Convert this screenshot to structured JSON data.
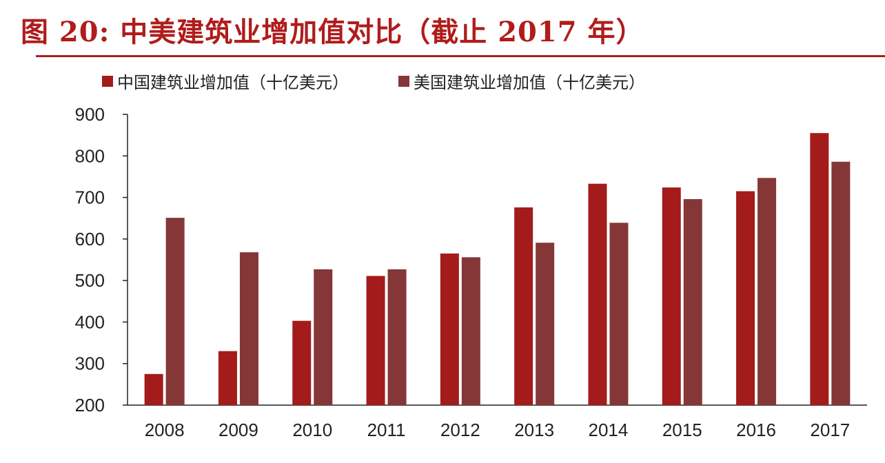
{
  "title": "图 20:  中美建筑业增加值对比（截止 2017 年）",
  "colors": {
    "title": "#b01c1c",
    "rule": "#a62020",
    "china": "#a31b1b",
    "usa": "#853737",
    "axis": "#222222"
  },
  "chart_data": {
    "type": "bar",
    "title": "图 20:  中美建筑业增加值对比（截止 2017 年）",
    "xlabel": "",
    "ylabel": "",
    "categories": [
      "2008",
      "2009",
      "2010",
      "2011",
      "2012",
      "2013",
      "2014",
      "2015",
      "2016",
      "2017"
    ],
    "series": [
      {
        "name": "中国建筑业增加值（十亿美元）",
        "color": "#a31b1b",
        "values": [
          275,
          330,
          403,
          511,
          565,
          676,
          733,
          724,
          715,
          855
        ]
      },
      {
        "name": "美国建筑业增加值（十亿美元）",
        "color": "#853737",
        "values": [
          651,
          568,
          527,
          527,
          556,
          591,
          639,
          696,
          747,
          786
        ]
      }
    ],
    "ylim": [
      200,
      900
    ],
    "yticks": [
      200,
      300,
      400,
      500,
      600,
      700,
      800,
      900
    ],
    "grid": false,
    "legend": "top"
  }
}
